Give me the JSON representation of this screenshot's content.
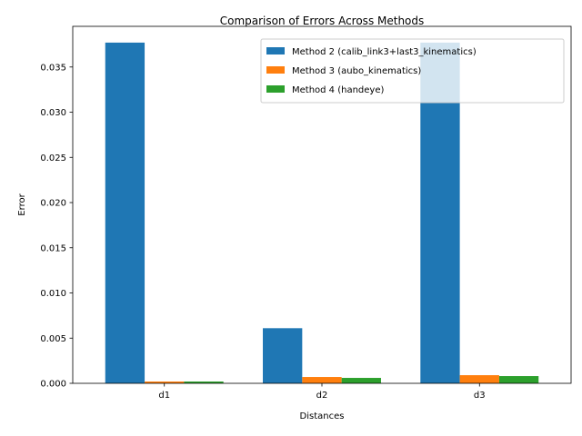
{
  "chart_data": {
    "type": "bar",
    "title": "Comparison of Errors Across Methods",
    "xlabel": "Distances",
    "ylabel": "Error",
    "categories": [
      "d1",
      "d2",
      "d3"
    ],
    "series": [
      {
        "name": "Method 2 (calib_link3+last3_kinematics)",
        "values": [
          0.0377,
          0.0061,
          0.0377
        ],
        "color": "#1f77b4"
      },
      {
        "name": "Method 3 (aubo_kinematics)",
        "values": [
          0.0002,
          0.0007,
          0.0009
        ],
        "color": "#ff7f0e"
      },
      {
        "name": "Method 4 (handeye)",
        "values": [
          0.0002,
          0.0006,
          0.0008
        ],
        "color": "#2ca02c"
      }
    ],
    "ylim": [
      0,
      0.0395
    ],
    "yticks": [
      "0.000",
      "0.005",
      "0.010",
      "0.015",
      "0.020",
      "0.025",
      "0.030",
      "0.035"
    ],
    "legend": "top-right",
    "grid": false
  }
}
